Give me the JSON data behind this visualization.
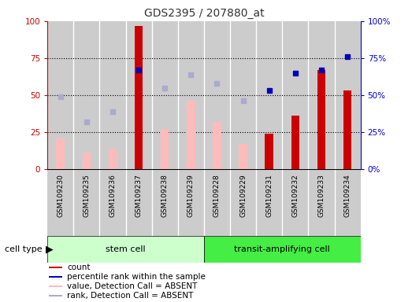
{
  "title": "GDS2395 / 207880_at",
  "samples": [
    "GSM109230",
    "GSM109235",
    "GSM109236",
    "GSM109237",
    "GSM109238",
    "GSM109239",
    "GSM109228",
    "GSM109229",
    "GSM109231",
    "GSM109232",
    "GSM109233",
    "GSM109234"
  ],
  "n_stem": 6,
  "n_transit": 6,
  "count_red": [
    null,
    null,
    null,
    97,
    null,
    null,
    null,
    null,
    24,
    36,
    null,
    null
  ],
  "count_dark_red": [
    null,
    null,
    null,
    null,
    null,
    null,
    null,
    null,
    null,
    null,
    67,
    53
  ],
  "value_absent_pink": [
    21,
    11,
    14,
    null,
    27,
    46,
    32,
    17,
    null,
    null,
    null,
    null
  ],
  "percentile_rank_blue": [
    null,
    null,
    null,
    67,
    null,
    null,
    null,
    null,
    53,
    65,
    67,
    76
  ],
  "rank_absent_lightblue": [
    49,
    32,
    39,
    null,
    55,
    64,
    58,
    46,
    null,
    null,
    null,
    null
  ],
  "ylim": [
    0,
    100
  ],
  "yticks": [
    0,
    25,
    50,
    75,
    100
  ],
  "gridlines": [
    25,
    50,
    75
  ],
  "color_red_bar": "#cc0000",
  "color_pink_bar": "#ffbbbb",
  "color_blue_dot": "#0000bb",
  "color_lightblue_dot": "#aaaacc",
  "color_stem_bg": "#ccffcc",
  "color_transit_bg": "#44ee44",
  "color_col_bg": "#cccccc",
  "color_col_border": "#ffffff",
  "left_tick_color": "#cc0000",
  "right_tick_color": "#0000cc",
  "legend_items": [
    {
      "color": "#cc0000",
      "label": "count"
    },
    {
      "color": "#0000bb",
      "label": "percentile rank within the sample"
    },
    {
      "color": "#ffbbbb",
      "label": "value, Detection Call = ABSENT"
    },
    {
      "color": "#aaaacc",
      "label": "rank, Detection Call = ABSENT"
    }
  ]
}
